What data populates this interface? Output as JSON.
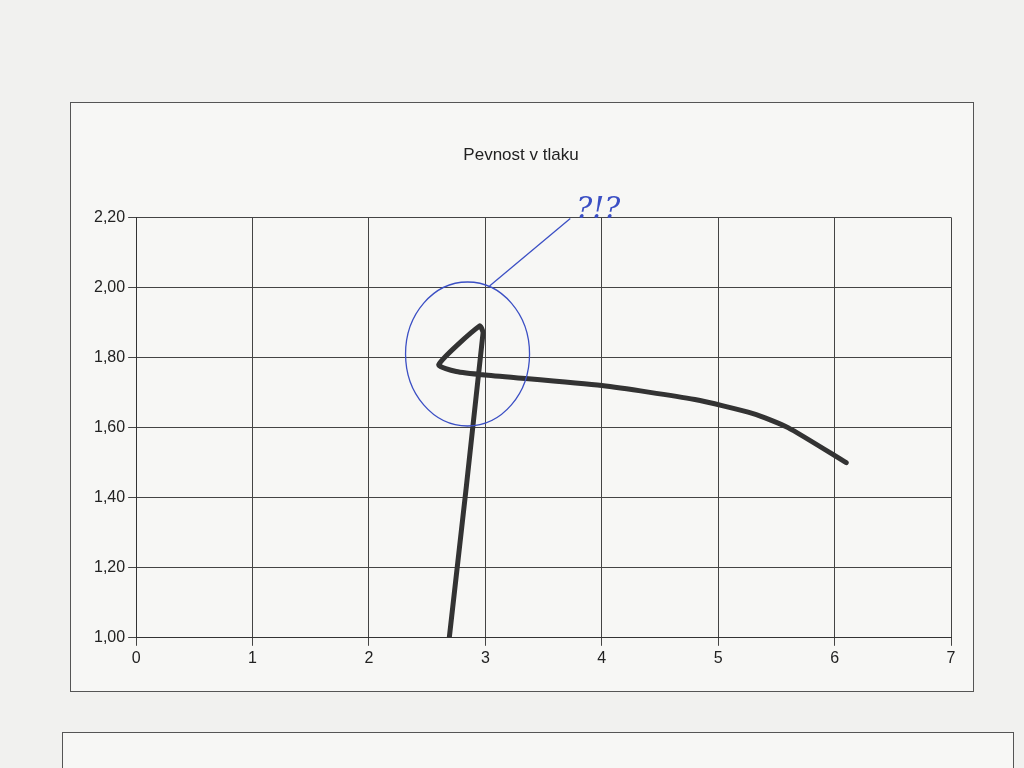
{
  "chart_data": {
    "type": "line",
    "title": "Pevnost v tlaku",
    "x": [
      2.69,
      2.98,
      2.95,
      2.6,
      2.75,
      3.0,
      4.0,
      4.8,
      5.3,
      5.6,
      6.1
    ],
    "values": [
      1.0,
      1.87,
      1.89,
      1.78,
      1.76,
      1.75,
      1.72,
      1.68,
      1.64,
      1.6,
      1.5
    ],
    "color": "#333333",
    "line_style": "solid",
    "marker": "none",
    "xlim": [
      0,
      7
    ],
    "xticks": [
      0,
      1,
      2,
      3,
      4,
      5,
      6,
      7
    ],
    "ylim": [
      1.0,
      2.2
    ],
    "yticks": [
      {
        "value": 1.0,
        "label": "1,00"
      },
      {
        "value": 1.2,
        "label": "1,20"
      },
      {
        "value": 1.4,
        "label": "1,40"
      },
      {
        "value": 1.6,
        "label": "1,60"
      },
      {
        "value": 1.8,
        "label": "1,80"
      },
      {
        "value": 2.0,
        "label": "2,00"
      },
      {
        "value": 2.2,
        "label": "2,20"
      }
    ],
    "grid": true,
    "annotations": [
      {
        "text": "?!?",
        "x": 3.97,
        "y": 2.22
      }
    ]
  }
}
